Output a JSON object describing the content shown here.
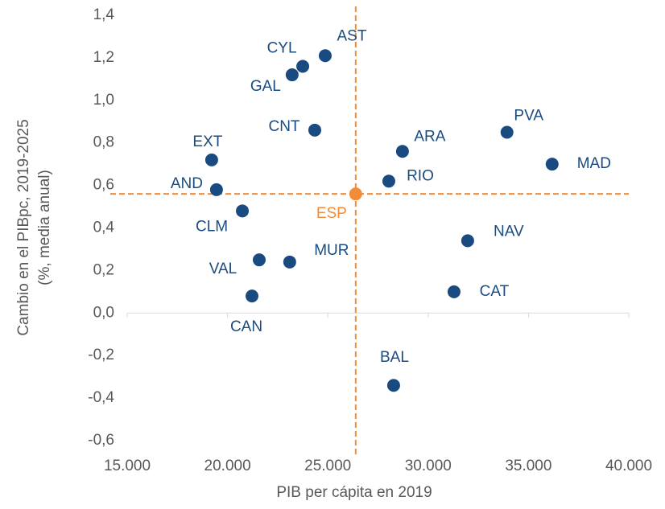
{
  "chart_data": {
    "type": "scatter",
    "xlabel": "PIB per cápita en 2019",
    "ylabel": [
      "Cambio en el PIBpc, 2019-2025",
      "(%, media anual)"
    ],
    "color": "#1a4b80",
    "points": [
      {
        "label": "AST",
        "x": 24870,
        "y": 1.21
      },
      {
        "label": "CYL",
        "x": 23750,
        "y": 1.16
      },
      {
        "label": "GAL",
        "x": 23220,
        "y": 1.12
      },
      {
        "label": "CNT",
        "x": 24350,
        "y": 0.86
      },
      {
        "label": "EXT",
        "x": 19210,
        "y": 0.72
      },
      {
        "label": "AND",
        "x": 19450,
        "y": 0.58
      },
      {
        "label": "CLM",
        "x": 20740,
        "y": 0.48
      },
      {
        "label": "VAL",
        "x": 21580,
        "y": 0.25
      },
      {
        "label": "MUR",
        "x": 23100,
        "y": 0.24
      },
      {
        "label": "CAN",
        "x": 21220,
        "y": 0.08
      },
      {
        "label": "ARA",
        "x": 28720,
        "y": 0.76
      },
      {
        "label": "RIO",
        "x": 28040,
        "y": 0.62
      },
      {
        "label": "PVA",
        "x": 33930,
        "y": 0.85
      },
      {
        "label": "MAD",
        "x": 36180,
        "y": 0.7
      },
      {
        "label": "NAV",
        "x": 31970,
        "y": 0.34
      },
      {
        "label": "CAT",
        "x": 31290,
        "y": 0.1
      },
      {
        "label": "BAL",
        "x": 28280,
        "y": -0.34
      }
    ],
    "reference_point": {
      "label": "ESP",
      "x": 26390,
      "y": 0.56,
      "color": "#f28c38"
    },
    "xlim": [
      15000,
      40000
    ],
    "xticks": [
      {
        "value": 15000,
        "label": "15.000"
      },
      {
        "value": 20000,
        "label": "20.000"
      },
      {
        "value": 25000,
        "label": "25.000"
      },
      {
        "value": 30000,
        "label": "30.000"
      },
      {
        "value": 35000,
        "label": "35.000"
      },
      {
        "value": 40000,
        "label": "40.000"
      }
    ],
    "ylim": [
      -0.6,
      1.4
    ],
    "yticks": [
      {
        "value": -0.6,
        "label": "-0,6"
      },
      {
        "value": -0.4,
        "label": "-0,4"
      },
      {
        "value": -0.2,
        "label": "-0,2"
      },
      {
        "value": 0,
        "label": "0,0"
      },
      {
        "value": 0.2,
        "label": "0,2"
      },
      {
        "value": 0.4,
        "label": "0,4"
      },
      {
        "value": 0.6,
        "label": "0,6"
      },
      {
        "value": 0.8,
        "label": "0,8"
      },
      {
        "value": 1.0,
        "label": "1,0"
      },
      {
        "value": 1.2,
        "label": "1,2"
      },
      {
        "value": 1.4,
        "label": "1,4"
      }
    ]
  }
}
